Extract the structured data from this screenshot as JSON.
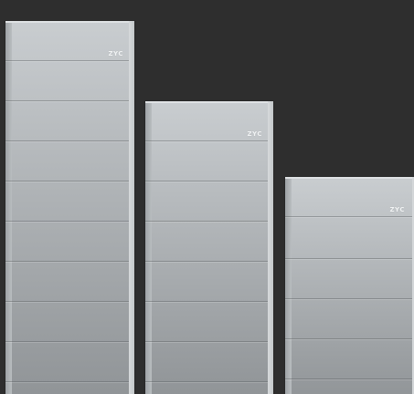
{
  "scene": {
    "background_color": "#2e2e2e",
    "cabinet_color": "#b2b6b9",
    "cabinets": [
      {
        "name": "tall",
        "logo_text": "ZYC"
      },
      {
        "name": "medium",
        "logo_text": "ZYC"
      },
      {
        "name": "short",
        "logo_text": "ZYC"
      }
    ]
  }
}
